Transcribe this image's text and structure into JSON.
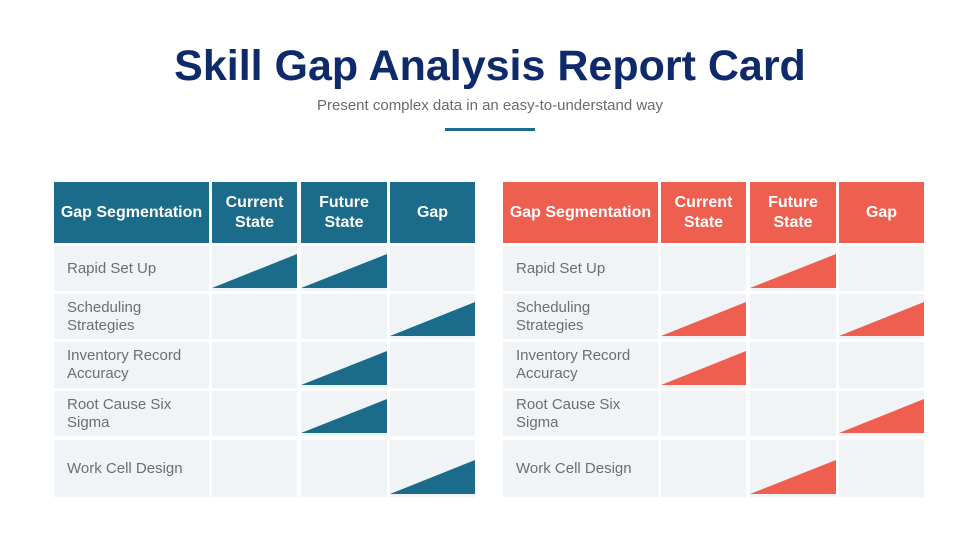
{
  "header": {
    "title": "Skill Gap Analysis Report Card",
    "subtitle": "Present complex data in an easy-to-understand way"
  },
  "colors": {
    "left_accent": "#1b6b8a",
    "right_accent": "#ef5f4f",
    "title": "#0f2a6b"
  },
  "tables": [
    {
      "accent": "#1b6b8a",
      "columns": [
        "Gap Segmentation",
        "Current State",
        "Future State",
        "Gap"
      ],
      "rows": [
        {
          "label": "Rapid Set Up",
          "current": true,
          "future": true,
          "gap": false
        },
        {
          "label": "Scheduling Strategies",
          "current": false,
          "future": false,
          "gap": true
        },
        {
          "label": "Inventory Record Accuracy",
          "current": false,
          "future": true,
          "gap": false
        },
        {
          "label": "Root Cause Six Sigma",
          "current": false,
          "future": true,
          "gap": false
        },
        {
          "label": "Work Cell Design",
          "current": false,
          "future": false,
          "gap": true
        }
      ]
    },
    {
      "accent": "#ef5f4f",
      "columns": [
        "Gap Segmentation",
        "Current State",
        "Future State",
        "Gap"
      ],
      "rows": [
        {
          "label": "Rapid Set Up",
          "current": false,
          "future": true,
          "gap": false
        },
        {
          "label": "Scheduling Strategies",
          "current": true,
          "future": false,
          "gap": true
        },
        {
          "label": "Inventory Record Accuracy",
          "current": true,
          "future": false,
          "gap": false
        },
        {
          "label": "Root Cause Six Sigma",
          "current": false,
          "future": false,
          "gap": true
        },
        {
          "label": "Work Cell Design",
          "current": false,
          "future": true,
          "gap": false
        }
      ]
    }
  ]
}
